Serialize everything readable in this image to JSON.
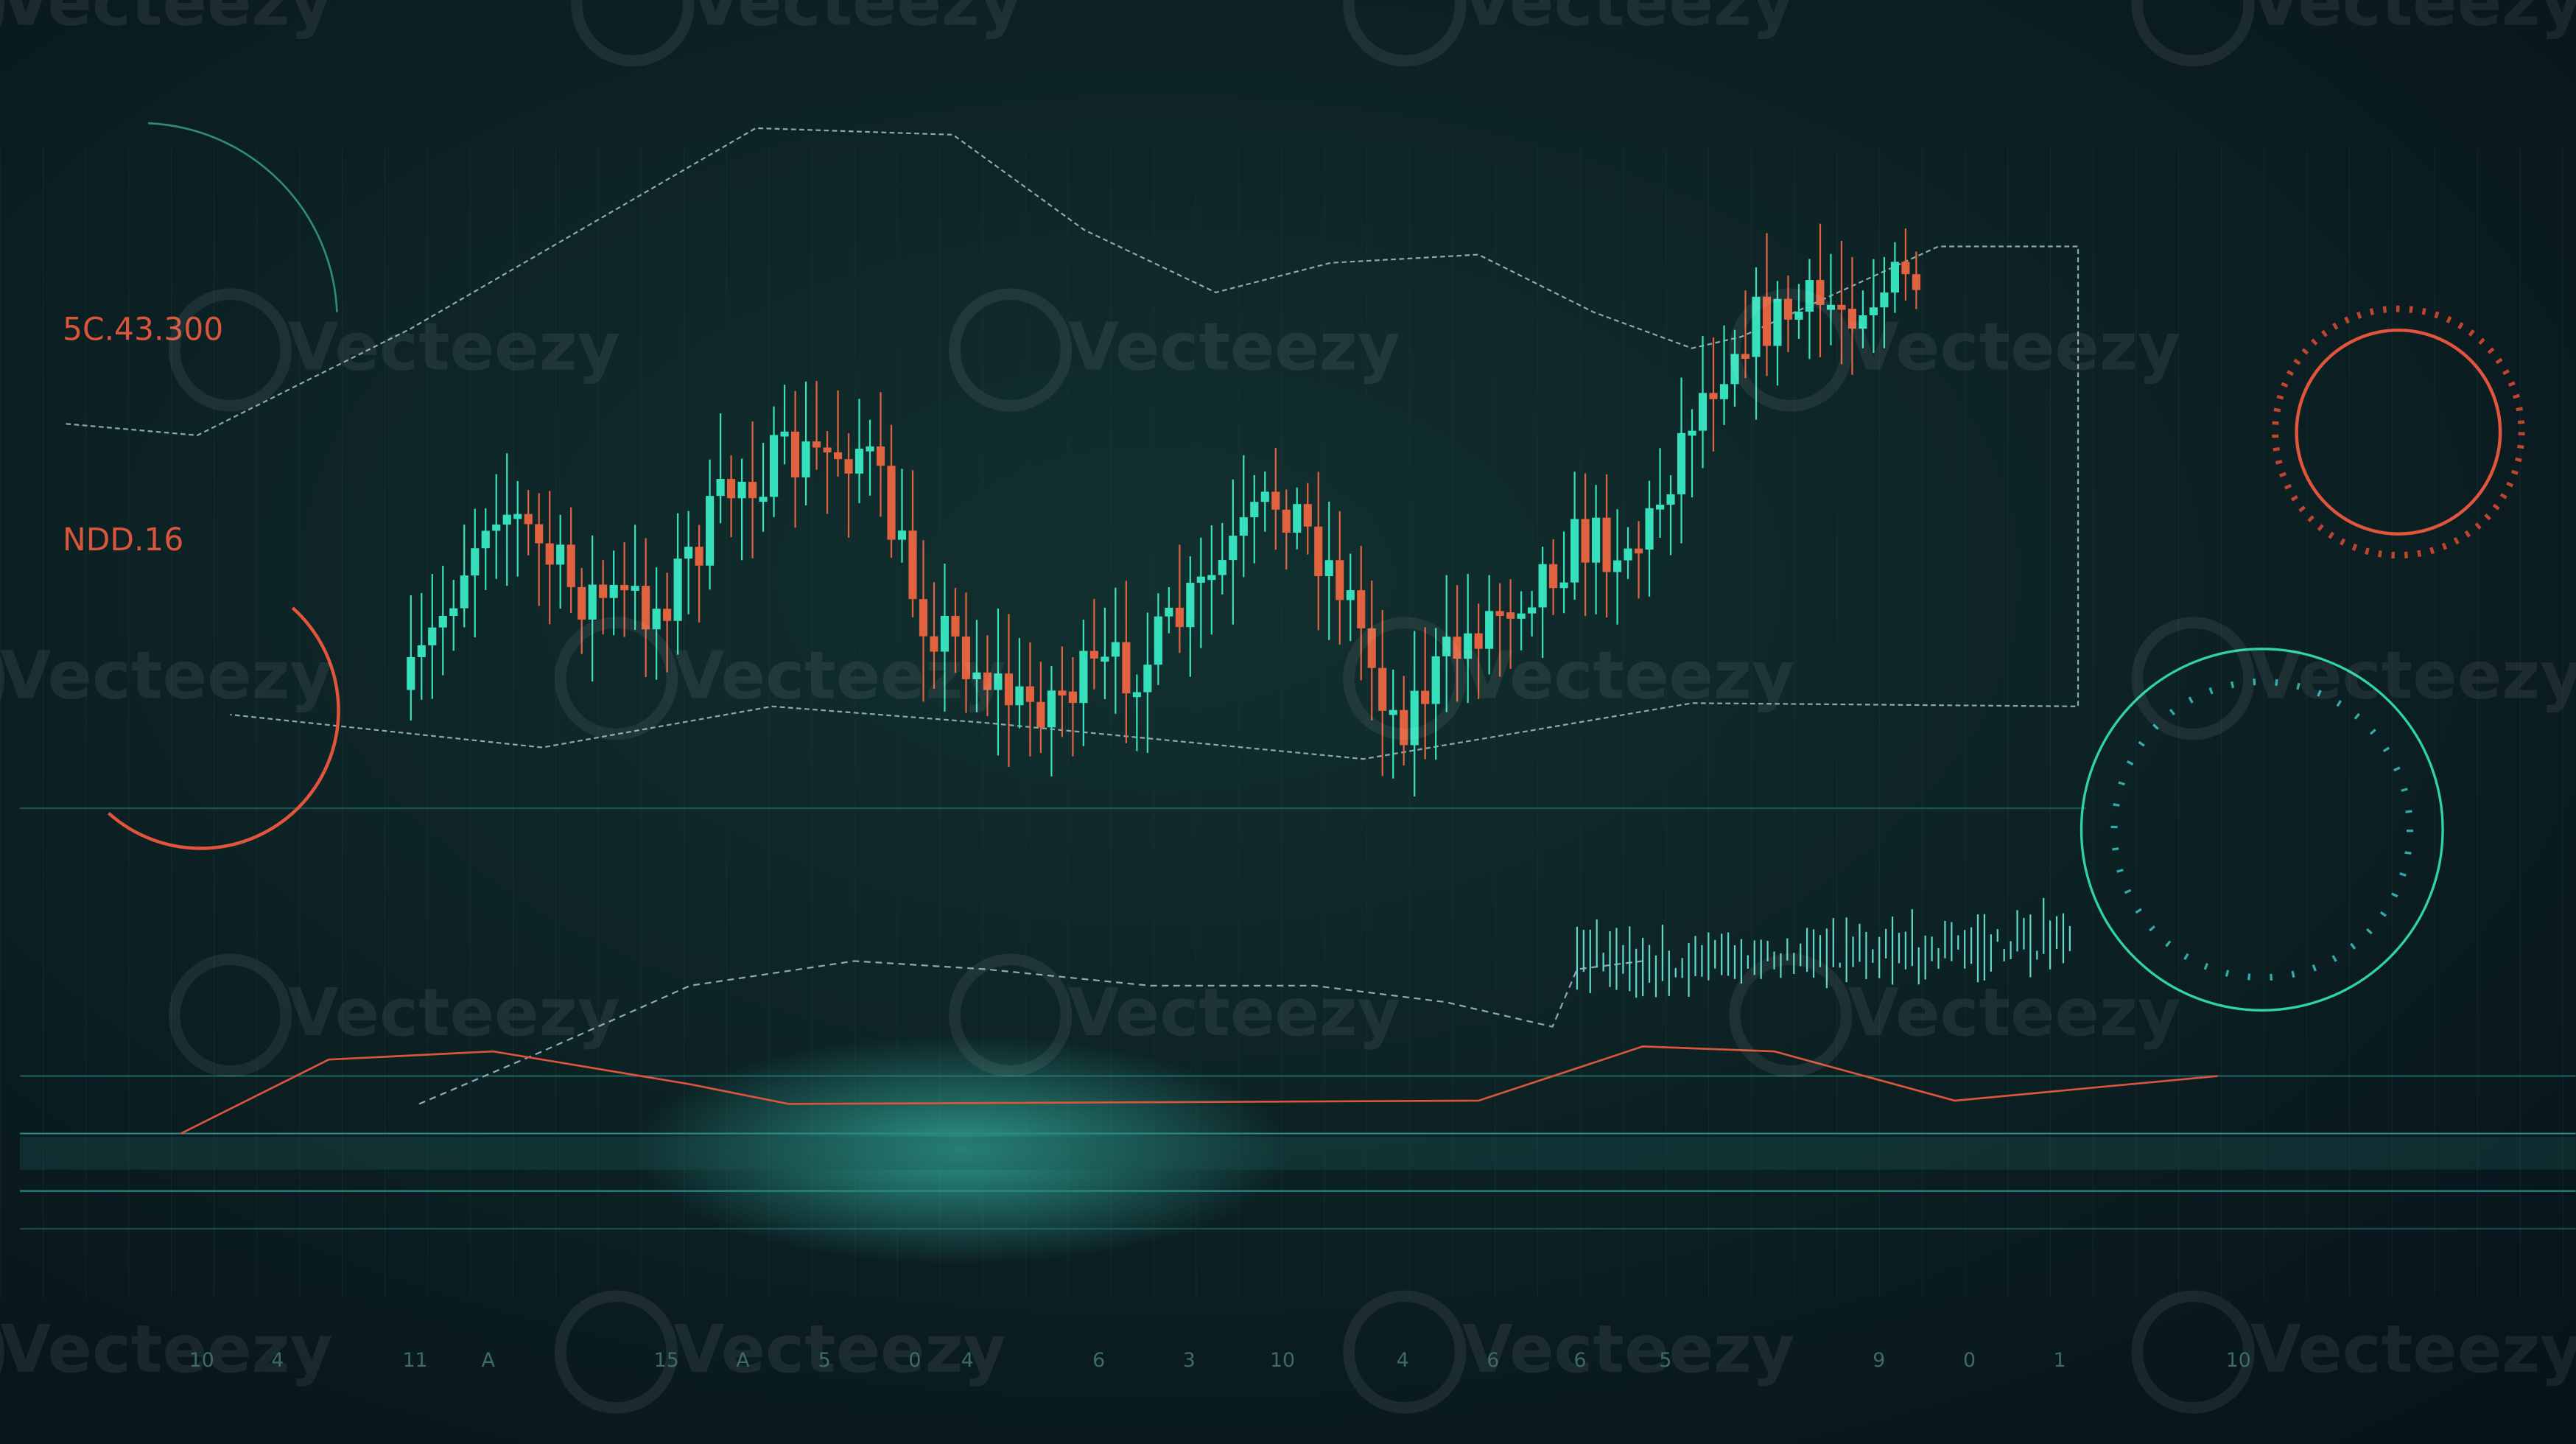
{
  "labels": {
    "top": "5C.43.300",
    "middle": "NDD.16"
  },
  "watermark": "Vecteezy",
  "axis_labels": [
    "10",
    "4",
    "11",
    "A",
    "15",
    "A",
    "5",
    "0",
    "4",
    "6",
    "3",
    "10",
    "4",
    "6",
    "6",
    "5",
    "9",
    "0",
    "1",
    "10"
  ]
}
